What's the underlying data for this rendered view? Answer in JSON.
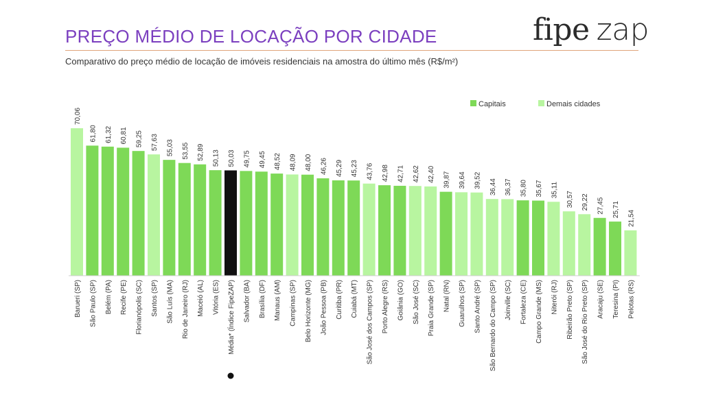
{
  "header": {
    "title": "PREÇO MÉDIO DE LOCAÇÃO POR CIDADE",
    "subtitle": "Comparativo do preço médio de locação de imóveis residenciais na amostra do último mês (R$/m²)",
    "logo_part1": "fipe",
    "logo_part2": "zap"
  },
  "colors": {
    "capitais": "#7ed957",
    "demais": "#b8f5a0",
    "media": "#111111",
    "title": "#7b3fbf"
  },
  "chart_data": {
    "type": "bar",
    "title": "PREÇO MÉDIO DE LOCAÇÃO POR CIDADE",
    "ylabel": "R$/m²",
    "ylim": [
      0,
      75
    ],
    "legend": [
      {
        "key": "capital",
        "label": "Capitais"
      },
      {
        "key": "demais",
        "label": "Demais cidades"
      }
    ],
    "legend_position": "top-right",
    "categories": [
      "Barueri (SP)",
      "São Paulo (SP)",
      "Belém (PA)",
      "Recife (PE)",
      "Florianópolis (SC)",
      "Santos (SP)",
      "São Luís (MA)",
      "Rio de Janeiro (RJ)",
      "Maceió (AL)",
      "Vitória (ES)",
      "Média* (Índice FipeZAP)",
      "Salvador (BA)",
      "Brasília (DF)",
      "Manaus (AM)",
      "Campinas (SP)",
      "Belo Horizonte (MG)",
      "João Pessoa (PB)",
      "Curitiba (PR)",
      "Cuiabá (MT)",
      "São José dos Campos (SP)",
      "Porto Alegre (RS)",
      "Goiânia (GO)",
      "São José (SC)",
      "Praia Grande (SP)",
      "Natal (RN)",
      "Guarulhos (SP)",
      "Santo André (SP)",
      "São Bernardo do Campo (SP)",
      "Joinville (SC)",
      "Fortaleza (CE)",
      "Campo Grande (MS)",
      "Niterói (RJ)",
      "Ribeirão Preto (SP)",
      "São José do Rio Preto (SP)",
      "Aracaju (SE)",
      "Teresina (PI)",
      "Pelotas (RS)"
    ],
    "values": [
      70.06,
      61.8,
      61.32,
      60.81,
      59.25,
      57.63,
      55.03,
      53.55,
      52.89,
      50.13,
      50.03,
      49.75,
      49.45,
      48.52,
      48.09,
      48.0,
      46.26,
      45.29,
      45.23,
      43.76,
      42.98,
      42.71,
      42.62,
      42.4,
      39.87,
      39.64,
      39.52,
      36.44,
      36.37,
      35.8,
      35.67,
      35.11,
      30.57,
      29.22,
      27.45,
      25.71,
      21.54
    ],
    "value_labels": [
      "70,06",
      "61,80",
      "61,32",
      "60,81",
      "59,25",
      "57,63",
      "55,03",
      "53,55",
      "52,89",
      "50,13",
      "50,03",
      "49,75",
      "49,45",
      "48,52",
      "48,09",
      "48,00",
      "46,26",
      "45,29",
      "45,23",
      "43,76",
      "42,98",
      "42,71",
      "42,62",
      "42,40",
      "39,87",
      "39,64",
      "39,52",
      "36,44",
      "36,37",
      "35,80",
      "35,67",
      "35,11",
      "30,57",
      "29,22",
      "27,45",
      "25,71",
      "21,54"
    ],
    "groups": [
      "demais",
      "capital",
      "capital",
      "capital",
      "capital",
      "demais",
      "capital",
      "capital",
      "capital",
      "capital",
      "media",
      "capital",
      "capital",
      "capital",
      "demais",
      "capital",
      "capital",
      "capital",
      "capital",
      "demais",
      "capital",
      "capital",
      "demais",
      "demais",
      "capital",
      "demais",
      "demais",
      "demais",
      "demais",
      "capital",
      "capital",
      "demais",
      "demais",
      "demais",
      "capital",
      "capital",
      "demais"
    ]
  }
}
